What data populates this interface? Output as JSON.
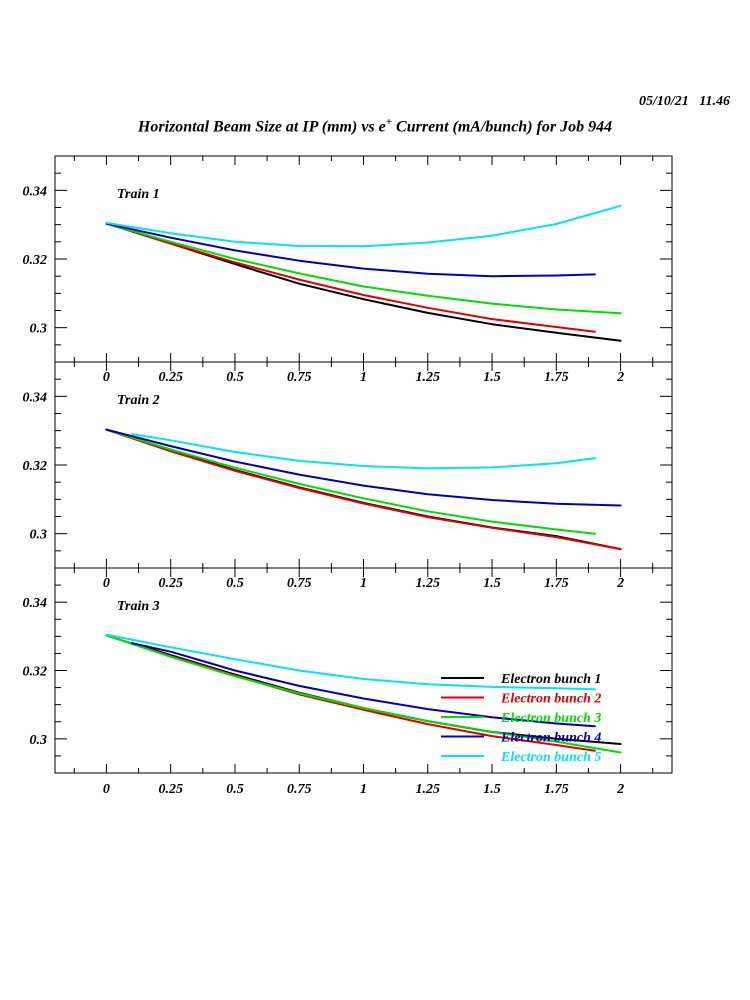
{
  "header": {
    "timestamp": "05/10/21   11.46",
    "title_pre": "Horizontal Beam Size at IP (mm) vs e",
    "title_sup": "+",
    "title_post": " Current (mA/bunch) for Job 944"
  },
  "chart_data": {
    "type": "line",
    "xlabel": "e+ Current (mA/bunch)",
    "ylabel": "Horizontal Beam Size at IP (mm)",
    "xlim": [
      -0.2,
      2.2
    ],
    "ylim": [
      0.29,
      0.35
    ],
    "x_ticks": [
      0,
      0.25,
      0.5,
      0.75,
      1,
      1.25,
      1.5,
      1.75,
      2
    ],
    "x_tick_labels": [
      "0",
      "0.25",
      "0.5",
      "0.75",
      "1",
      "1.25",
      "1.5",
      "1.75",
      "2"
    ],
    "y_ticks": [
      0.3,
      0.32,
      0.34
    ],
    "y_tick_labels": [
      "0.3",
      "0.32",
      "0.34"
    ],
    "legend": [
      {
        "label": "Electron bunch 1",
        "color": "#000000"
      },
      {
        "label": "Electron bunch 2",
        "color": "#e00000"
      },
      {
        "label": "Electron bunch 3",
        "color": "#00dd00"
      },
      {
        "label": "Electron bunch 4",
        "color": "#0000bb"
      },
      {
        "label": "Electron bunch 5",
        "color": "#00e5ee"
      }
    ],
    "panels": [
      {
        "name": "Train 1",
        "series": [
          {
            "name": "Electron bunch 1",
            "color": "#000000",
            "x": [
              0.1,
              0.25,
              0.5,
              0.75,
              1,
              1.25,
              1.5,
              1.75,
              2
            ],
            "y": [
              0.328,
              0.3245,
              0.3185,
              0.3128,
              0.3083,
              0.3043,
              0.301,
              0.2985,
              0.2962
            ]
          },
          {
            "name": "Electron bunch 2",
            "color": "#e00000",
            "x": [
              0,
              0.25,
              0.5,
              0.75,
              1,
              1.25,
              1.5,
              1.75,
              1.9
            ],
            "y": [
              0.3303,
              0.3245,
              0.319,
              0.314,
              0.3095,
              0.3058,
              0.3025,
              0.3002,
              0.2988
            ]
          },
          {
            "name": "Electron bunch 3",
            "color": "#00dd00",
            "x": [
              0,
              0.25,
              0.5,
              0.75,
              1,
              1.25,
              1.5,
              1.75,
              2
            ],
            "y": [
              0.3303,
              0.325,
              0.32,
              0.3158,
              0.312,
              0.3093,
              0.307,
              0.3053,
              0.3042
            ]
          },
          {
            "name": "Electron bunch 4",
            "color": "#0000bb",
            "x": [
              0,
              0.25,
              0.5,
              0.75,
              1,
              1.25,
              1.5,
              1.75,
              1.9
            ],
            "y": [
              0.3303,
              0.3262,
              0.3225,
              0.3195,
              0.3172,
              0.3157,
              0.315,
              0.3152,
              0.3155
            ]
          },
          {
            "name": "Electron bunch 5",
            "color": "#00e5ee",
            "x": [
              0,
              0.25,
              0.5,
              0.75,
              1,
              1.25,
              1.5,
              1.75,
              2
            ],
            "y": [
              0.3305,
              0.3275,
              0.325,
              0.3238,
              0.3237,
              0.3248,
              0.3268,
              0.3302,
              0.3355
            ]
          }
        ]
      },
      {
        "name": "Train 2",
        "series": [
          {
            "name": "Electron bunch 1",
            "color": "#000000",
            "x": [
              0,
              0.25,
              0.5,
              0.75,
              1,
              1.25,
              1.5,
              1.75,
              2
            ],
            "y": [
              0.3303,
              0.3242,
              0.3185,
              0.3135,
              0.309,
              0.305,
              0.3018,
              0.2993,
              0.2955
            ]
          },
          {
            "name": "Electron bunch 2",
            "color": "#e00000",
            "x": [
              0,
              0.25,
              0.5,
              0.75,
              1,
              1.25,
              1.5,
              1.75,
              2
            ],
            "y": [
              0.3303,
              0.324,
              0.3183,
              0.3133,
              0.3088,
              0.3048,
              0.3017,
              0.299,
              0.2955
            ]
          },
          {
            "name": "Electron bunch 3",
            "color": "#00dd00",
            "x": [
              0,
              0.25,
              0.5,
              0.75,
              1,
              1.25,
              1.5,
              1.75,
              1.9
            ],
            "y": [
              0.3303,
              0.3245,
              0.3192,
              0.3145,
              0.3103,
              0.3065,
              0.3035,
              0.3012,
              0.3
            ]
          },
          {
            "name": "Electron bunch 4",
            "color": "#0000bb",
            "x": [
              0,
              0.25,
              0.5,
              0.75,
              1,
              1.25,
              1.5,
              1.75,
              2
            ],
            "y": [
              0.3303,
              0.3255,
              0.321,
              0.3172,
              0.314,
              0.3115,
              0.3098,
              0.3087,
              0.3082
            ]
          },
          {
            "name": "Electron bunch 5",
            "color": "#00e5ee",
            "x": [
              0.1,
              0.25,
              0.5,
              0.75,
              1,
              1.25,
              1.5,
              1.75,
              1.9
            ],
            "y": [
              0.329,
              0.3272,
              0.3238,
              0.3212,
              0.3197,
              0.319,
              0.3193,
              0.3205,
              0.322
            ]
          }
        ]
      },
      {
        "name": "Train 3",
        "series": [
          {
            "name": "Electron bunch 1",
            "color": "#000000",
            "x": [
              0.1,
              0.25,
              0.5,
              0.75,
              1,
              1.25,
              1.5,
              1.75,
              2
            ],
            "y": [
              0.328,
              0.3245,
              0.3188,
              0.3135,
              0.309,
              0.3052,
              0.302,
              0.3,
              0.2985
            ]
          },
          {
            "name": "Electron bunch 2",
            "color": "#e00000",
            "x": [
              0,
              0.25,
              0.5,
              0.75,
              1,
              1.25,
              1.5,
              1.75,
              1.9
            ],
            "y": [
              0.3303,
              0.3242,
              0.3185,
              0.313,
              0.3085,
              0.3043,
              0.3008,
              0.2982,
              0.2965
            ]
          },
          {
            "name": "Electron bunch 3",
            "color": "#00dd00",
            "x": [
              0,
              0.25,
              0.5,
              0.75,
              1,
              1.25,
              1.5,
              1.75,
              2
            ],
            "y": [
              0.3303,
              0.324,
              0.3183,
              0.3133,
              0.309,
              0.3052,
              0.302,
              0.2992,
              0.296
            ]
          },
          {
            "name": "Electron bunch 4",
            "color": "#0000bb",
            "x": [
              0.1,
              0.25,
              0.5,
              0.75,
              1,
              1.25,
              1.5,
              1.75,
              1.9
            ],
            "y": [
              0.328,
              0.3255,
              0.32,
              0.3155,
              0.3118,
              0.3087,
              0.3063,
              0.3045,
              0.3037
            ]
          },
          {
            "name": "Electron bunch 5",
            "color": "#00e5ee",
            "x": [
              0,
              0.25,
              0.5,
              0.75,
              1,
              1.25,
              1.5,
              1.75,
              1.9
            ],
            "y": [
              0.3305,
              0.3268,
              0.3233,
              0.32,
              0.3175,
              0.316,
              0.3152,
              0.3148,
              0.3145
            ]
          }
        ]
      }
    ]
  }
}
